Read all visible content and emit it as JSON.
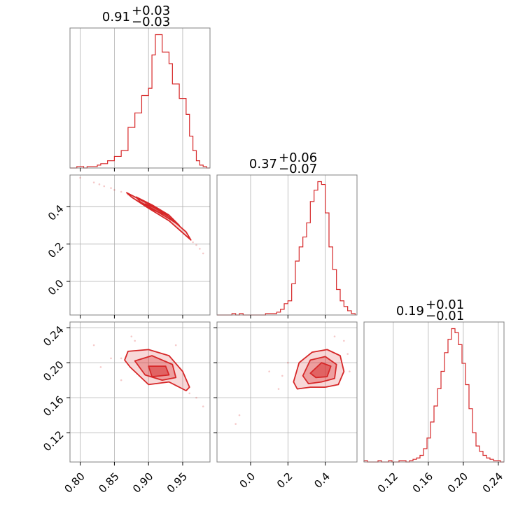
{
  "colors": {
    "series": "#d62728",
    "grid": "#b0b0b0",
    "frame": "#808080"
  },
  "chart_data": {
    "type": "corner",
    "parameters": [
      {
        "range": [
          0.785,
          0.99
        ],
        "ticks": [
          "0.80",
          "0.85",
          "0.90",
          "0.95"
        ],
        "tick_values": [
          0.8,
          0.85,
          0.9,
          0.95
        ],
        "title": {
          "value": "0.91",
          "plus": "+0.03",
          "minus": "−0.03"
        }
      },
      {
        "range": [
          -0.18,
          0.57
        ],
        "ticks": [
          "0.0",
          "0.2",
          "0.4"
        ],
        "tick_values": [
          0.0,
          0.2,
          0.4
        ],
        "title": {
          "value": "0.37",
          "plus": "+0.06",
          "minus": "−0.07"
        }
      },
      {
        "range": [
          0.0865,
          0.2465
        ],
        "ticks": [
          "0.12",
          "0.16",
          "0.20",
          "0.24"
        ],
        "tick_values": [
          0.12,
          0.16,
          0.2,
          0.24
        ],
        "title": {
          "value": "0.19",
          "plus": "+0.01",
          "minus": "−0.01"
        }
      }
    ],
    "histograms": [
      {
        "param": 0,
        "bin_edges": [
          0.785,
          0.79,
          0.795,
          0.8,
          0.805,
          0.81,
          0.815,
          0.82,
          0.825,
          0.83,
          0.835,
          0.84,
          0.845,
          0.85,
          0.855,
          0.86,
          0.865,
          0.87,
          0.875,
          0.88,
          0.885,
          0.89,
          0.895,
          0.9,
          0.905,
          0.91,
          0.915,
          0.92,
          0.925,
          0.93,
          0.935,
          0.94,
          0.945,
          0.95,
          0.955,
          0.96,
          0.965,
          0.97,
          0.975,
          0.98,
          0.985,
          0.99
        ],
        "counts": [
          0,
          0,
          1,
          1,
          0,
          1,
          1,
          1,
          2,
          3,
          3,
          5,
          5,
          8,
          8,
          12,
          12,
          28,
          28,
          38,
          38,
          50,
          50,
          55,
          78,
          92,
          92,
          80,
          80,
          72,
          58,
          58,
          48,
          48,
          37,
          22,
          12,
          5,
          2,
          1,
          0
        ]
      },
      {
        "param": 1,
        "bin_edges": [
          -0.18,
          -0.16,
          -0.14,
          -0.12,
          -0.1,
          -0.08,
          -0.06,
          -0.04,
          -0.02,
          0.0,
          0.02,
          0.04,
          0.06,
          0.08,
          0.1,
          0.12,
          0.14,
          0.16,
          0.18,
          0.2,
          0.22,
          0.24,
          0.26,
          0.28,
          0.3,
          0.32,
          0.34,
          0.36,
          0.38,
          0.4,
          0.42,
          0.44,
          0.46,
          0.48,
          0.5,
          0.52,
          0.54,
          0.56
        ],
        "counts": [
          0,
          0,
          0,
          0,
          1,
          0,
          1,
          0,
          0,
          0,
          0,
          0,
          0,
          1,
          1,
          1,
          2,
          4,
          8,
          10,
          22,
          38,
          48,
          55,
          65,
          80,
          88,
          94,
          92,
          72,
          48,
          32,
          18,
          10,
          6,
          3,
          1
        ]
      },
      {
        "param": 2,
        "bin_edges": [
          0.0865,
          0.0905,
          0.0945,
          0.0985,
          0.1025,
          0.1065,
          0.1105,
          0.1145,
          0.1185,
          0.1225,
          0.1265,
          0.1305,
          0.1345,
          0.1385,
          0.1425,
          0.1465,
          0.1505,
          0.1545,
          0.1585,
          0.1625,
          0.1665,
          0.1705,
          0.1745,
          0.1785,
          0.1825,
          0.1865,
          0.1905,
          0.1945,
          0.1985,
          0.2025,
          0.2065,
          0.2105,
          0.2145,
          0.2185,
          0.2225,
          0.2265,
          0.2305,
          0.2345,
          0.2385,
          0.2425,
          0.2465
        ],
        "counts": [
          1,
          0,
          0,
          0,
          1,
          0,
          0,
          1,
          0,
          0,
          1,
          1,
          0,
          1,
          2,
          3,
          5,
          10,
          18,
          30,
          42,
          55,
          68,
          82,
          92,
          100,
          97,
          88,
          74,
          58,
          40,
          22,
          12,
          8,
          5,
          3,
          2,
          1,
          1,
          0
        ]
      }
    ],
    "pairs": [
      {
        "x_param": 0,
        "y_param": 1,
        "contours": [
          [
            [
              0.868,
              0.475
            ],
            [
              0.9,
              0.415
            ],
            [
              0.93,
              0.345
            ],
            [
              0.955,
              0.265
            ],
            [
              0.962,
              0.222
            ],
            [
              0.957,
              0.238
            ],
            [
              0.93,
              0.325
            ],
            [
              0.9,
              0.392
            ],
            [
              0.875,
              0.452
            ]
          ],
          [
            [
              0.882,
              0.452
            ],
            [
              0.905,
              0.41
            ],
            [
              0.93,
              0.355
            ],
            [
              0.945,
              0.3
            ],
            [
              0.935,
              0.325
            ],
            [
              0.91,
              0.38
            ],
            [
              0.888,
              0.425
            ]
          ],
          [
            [
              0.895,
              0.415
            ],
            [
              0.912,
              0.39
            ],
            [
              0.928,
              0.355
            ],
            [
              0.915,
              0.37
            ],
            [
              0.898,
              0.398
            ]
          ]
        ],
        "points": [
          [
            0.8,
            0.555
          ],
          [
            0.82,
            0.53
          ],
          [
            0.835,
            0.51
          ],
          [
            0.85,
            0.49
          ],
          [
            0.86,
            0.48
          ],
          [
            0.87,
            0.465
          ],
          [
            0.965,
            0.21
          ],
          [
            0.97,
            0.195
          ],
          [
            0.975,
            0.175
          ],
          [
            0.98,
            0.15
          ],
          [
            0.845,
            0.5
          ],
          [
            0.828,
            0.52
          ]
        ]
      },
      {
        "x_param": 0,
        "y_param": 2,
        "contours": [
          [
            [
              0.865,
              0.203
            ],
            [
              0.87,
              0.213
            ],
            [
              0.9,
              0.215
            ],
            [
              0.93,
              0.208
            ],
            [
              0.95,
              0.19
            ],
            [
              0.96,
              0.172
            ],
            [
              0.955,
              0.168
            ],
            [
              0.93,
              0.178
            ],
            [
              0.9,
              0.175
            ],
            [
              0.873,
              0.195
            ]
          ],
          [
            [
              0.88,
              0.202
            ],
            [
              0.905,
              0.208
            ],
            [
              0.935,
              0.198
            ],
            [
              0.94,
              0.183
            ],
            [
              0.92,
              0.18
            ],
            [
              0.895,
              0.186
            ]
          ],
          [
            [
              0.9,
              0.196
            ],
            [
              0.925,
              0.196
            ],
            [
              0.93,
              0.186
            ],
            [
              0.905,
              0.184
            ]
          ]
        ],
        "points": [
          [
            0.86,
            0.205
          ],
          [
            0.845,
            0.205
          ],
          [
            0.875,
            0.23
          ],
          [
            0.88,
            0.225
          ],
          [
            0.83,
            0.195
          ],
          [
            0.82,
            0.22
          ],
          [
            0.97,
            0.16
          ],
          [
            0.98,
            0.15
          ],
          [
            0.96,
            0.165
          ],
          [
            0.94,
            0.22
          ],
          [
            0.86,
            0.18
          ]
        ]
      },
      {
        "x_param": 1,
        "y_param": 2,
        "contours": [
          [
            [
              0.23,
              0.178
            ],
            [
              0.26,
              0.2
            ],
            [
              0.33,
              0.212
            ],
            [
              0.41,
              0.215
            ],
            [
              0.48,
              0.208
            ],
            [
              0.5,
              0.19
            ],
            [
              0.47,
              0.175
            ],
            [
              0.4,
              0.172
            ],
            [
              0.32,
              0.172
            ],
            [
              0.25,
              0.17
            ]
          ],
          [
            [
              0.28,
              0.185
            ],
            [
              0.32,
              0.203
            ],
            [
              0.4,
              0.207
            ],
            [
              0.46,
              0.198
            ],
            [
              0.45,
              0.182
            ],
            [
              0.38,
              0.178
            ],
            [
              0.31,
              0.176
            ]
          ],
          [
            [
              0.32,
              0.188
            ],
            [
              0.38,
              0.2
            ],
            [
              0.43,
              0.196
            ],
            [
              0.41,
              0.184
            ],
            [
              0.35,
              0.183
            ]
          ]
        ],
        "points": [
          [
            -0.06,
            0.14
          ],
          [
            -0.08,
            0.13
          ],
          [
            0.17,
            0.185
          ],
          [
            0.2,
            0.2
          ],
          [
            0.5,
            0.225
          ],
          [
            0.52,
            0.21
          ],
          [
            0.1,
            0.19
          ],
          [
            0.15,
            0.17
          ],
          [
            0.45,
            0.23
          ],
          [
            0.53,
            0.19
          ]
        ]
      }
    ]
  }
}
